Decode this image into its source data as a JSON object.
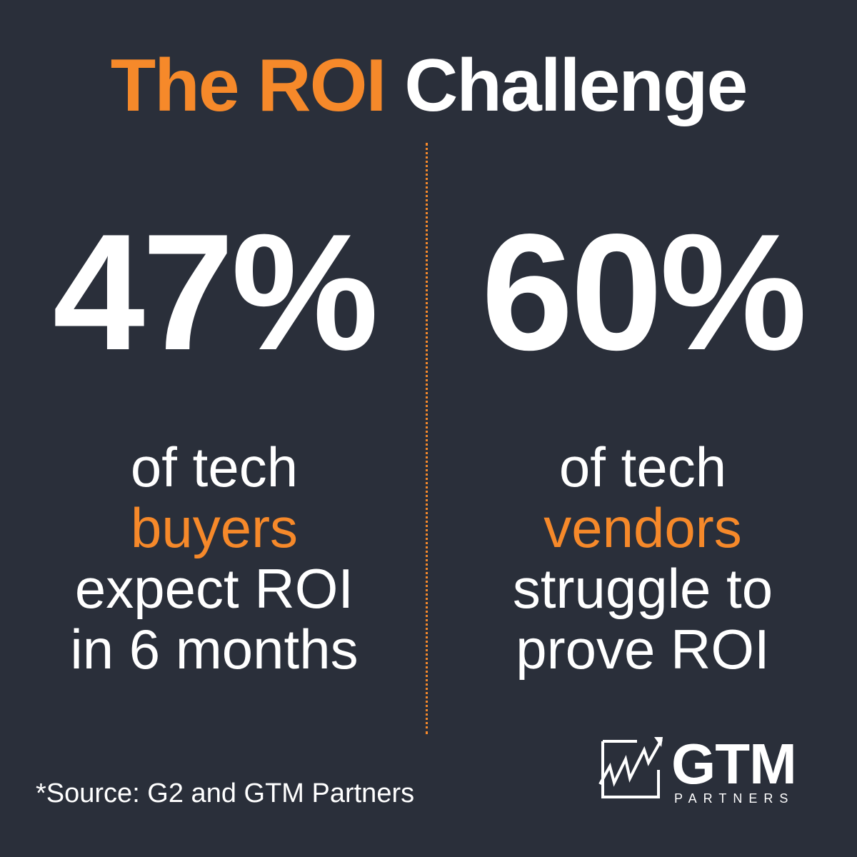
{
  "title": {
    "highlight": "The ROI",
    "rest": "Challenge"
  },
  "stats": [
    {
      "value": "47%",
      "lines": [
        "of tech",
        "buyers",
        "expect ROI",
        "in 6 months"
      ]
    },
    {
      "value": "60%",
      "lines": [
        "of tech",
        "vendors",
        "struggle to",
        "prove ROI"
      ]
    }
  ],
  "footnote": "*Source: G2 and GTM Partners",
  "logo": {
    "name": "GTM",
    "tagline": "PARTNERS"
  }
}
